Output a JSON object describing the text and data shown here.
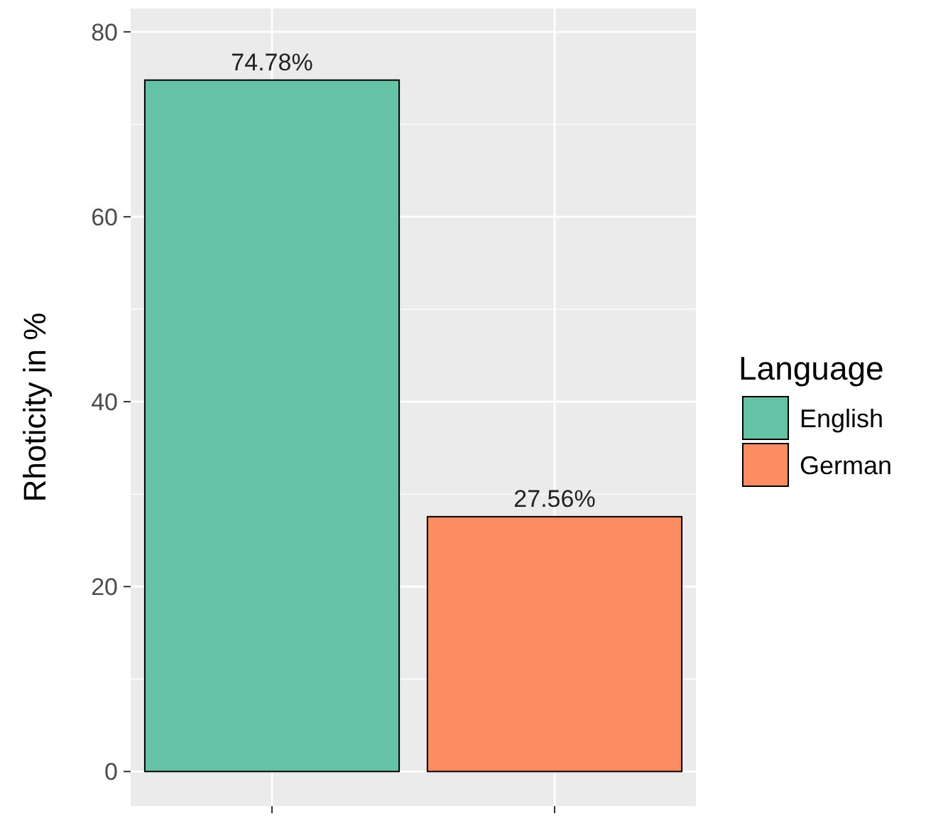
{
  "chart_data": {
    "type": "bar",
    "ylabel": "Rhoticity in %",
    "legend_title": "Language",
    "legend": "right",
    "categories": [
      null,
      null
    ],
    "series": [
      {
        "name": "English",
        "color": "#66c2a5",
        "values": [
          74.78,
          null
        ]
      },
      {
        "name": "German",
        "color": "#fc8d62",
        "values": [
          null,
          27.56
        ]
      }
    ],
    "value_labels": [
      "74.78%",
      "27.56%"
    ],
    "ylim": [
      -3.74,
      82.52
    ],
    "yticks": [
      0,
      20,
      40,
      60,
      80
    ],
    "grid": true,
    "tick_labels": "y"
  }
}
